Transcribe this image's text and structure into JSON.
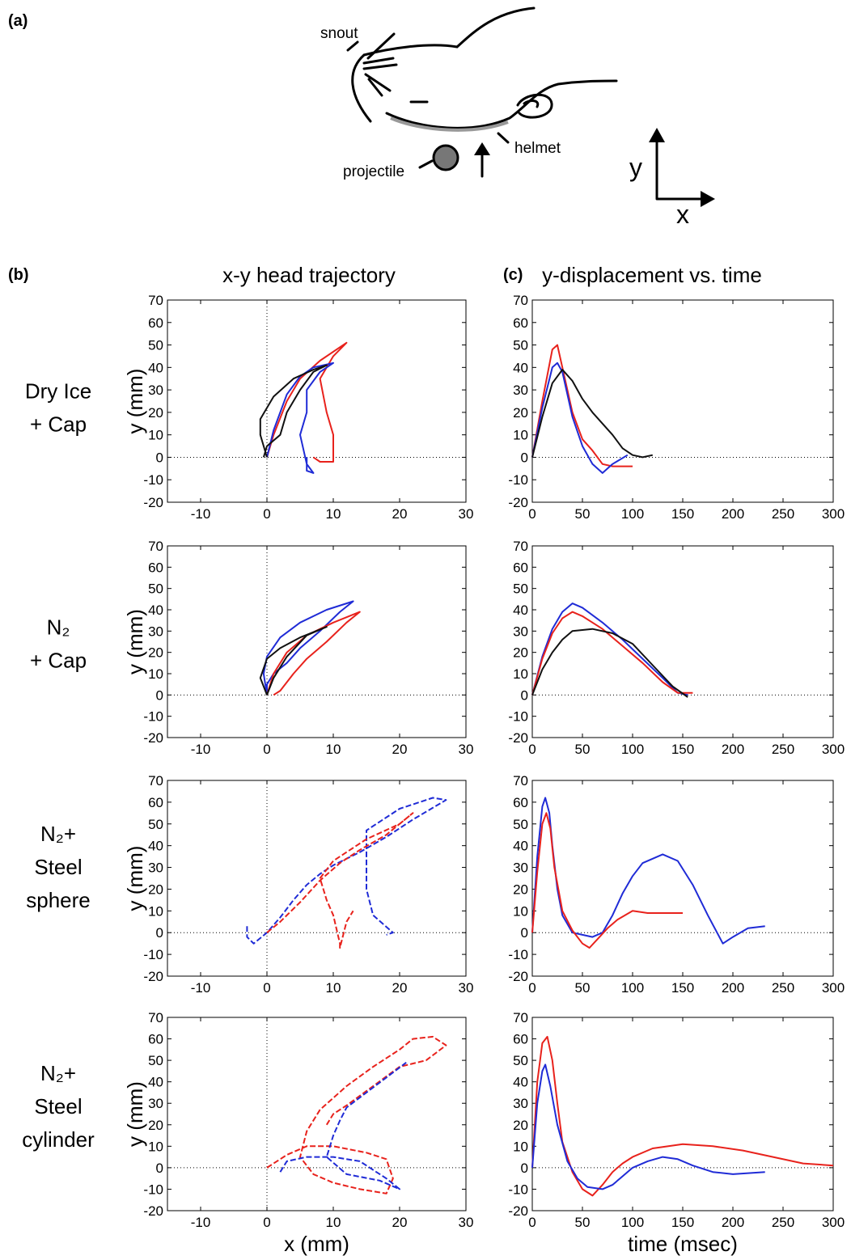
{
  "panel_labels": [
    "(a)",
    "(b)",
    "(c)"
  ],
  "diagram": {
    "labels": {
      "snout": "snout",
      "helmet": "helmet",
      "projectile": "projectile"
    },
    "axis_y": "y",
    "axis_x": "x"
  },
  "column_titles": [
    "x-y head trajectory",
    "y-displacement vs. time"
  ],
  "row_labels": [
    [
      "Dry Ice",
      "+ Cap"
    ],
    [
      "N₂",
      "+ Cap"
    ],
    [
      "N₂+",
      "Steel",
      "sphere"
    ],
    [
      "N₂+",
      "Steel",
      "cylinder"
    ]
  ],
  "chart_data": [
    {
      "type": "line",
      "ylabel": "y (mm)",
      "xlim": [
        -15,
        30
      ],
      "xticks": [
        -10,
        0,
        10,
        20,
        30
      ],
      "ylim": [
        -20,
        70
      ],
      "yticks": [
        -20,
        -10,
        0,
        10,
        20,
        30,
        40,
        50,
        60,
        70
      ],
      "zero_lines": true,
      "series": [
        {
          "color": "#e8221c",
          "x": [
            0,
            1,
            3,
            5,
            8,
            12,
            10,
            8,
            9,
            10,
            10,
            8,
            7
          ],
          "values": [
            0,
            10,
            25,
            35,
            43,
            51,
            45,
            35,
            20,
            10,
            -2,
            -2,
            0
          ]
        },
        {
          "color": "#1f2bd6",
          "x": [
            0,
            1,
            3,
            5,
            7,
            10,
            8,
            6,
            6,
            5,
            6,
            7,
            6,
            6
          ],
          "values": [
            0,
            12,
            28,
            36,
            40,
            42,
            38,
            30,
            20,
            10,
            -3,
            -7,
            -6,
            0
          ]
        },
        {
          "color": "#111111",
          "x": [
            0,
            -1,
            -1,
            1,
            4,
            7,
            9,
            7,
            5,
            3,
            2,
            0,
            -0.5
          ],
          "values": [
            0,
            10,
            17,
            27,
            35,
            39,
            41,
            38,
            30,
            20,
            10,
            5,
            0
          ]
        }
      ]
    },
    {
      "type": "line",
      "xlim": [
        0,
        300
      ],
      "xticks": [
        0,
        50,
        100,
        150,
        200,
        250,
        300
      ],
      "ylim": [
        -20,
        70
      ],
      "yticks": [
        -20,
        -10,
        0,
        10,
        20,
        30,
        40,
        50,
        60,
        70
      ],
      "zero_lines": true,
      "series": [
        {
          "color": "#e8221c",
          "x": [
            0,
            10,
            20,
            25,
            30,
            40,
            50,
            60,
            70,
            80,
            100
          ],
          "values": [
            0,
            25,
            48,
            50,
            40,
            20,
            8,
            3,
            -3,
            -4,
            -4
          ]
        },
        {
          "color": "#1f2bd6",
          "x": [
            0,
            10,
            20,
            25,
            30,
            40,
            50,
            60,
            70,
            80,
            95
          ],
          "values": [
            0,
            22,
            40,
            42,
            38,
            18,
            5,
            -3,
            -7,
            -3,
            1
          ]
        },
        {
          "color": "#111111",
          "x": [
            0,
            10,
            20,
            30,
            40,
            50,
            60,
            70,
            80,
            90,
            100,
            110,
            120
          ],
          "values": [
            0,
            18,
            33,
            39,
            34,
            26,
            20,
            15,
            10,
            4,
            1,
            0,
            1
          ]
        }
      ]
    },
    {
      "type": "line",
      "ylabel": "y (mm)",
      "xlim": [
        -15,
        30
      ],
      "xticks": [
        -10,
        0,
        10,
        20,
        30
      ],
      "ylim": [
        -20,
        70
      ],
      "yticks": [
        -20,
        -10,
        0,
        10,
        20,
        30,
        40,
        50,
        60,
        70
      ],
      "zero_lines": true,
      "series": [
        {
          "color": "#1f2bd6",
          "x": [
            0,
            -0.5,
            0,
            2,
            5,
            9,
            13,
            11,
            8,
            5,
            3,
            1,
            0,
            0
          ],
          "values": [
            0,
            10,
            18,
            27,
            34,
            40,
            44,
            39,
            30,
            22,
            15,
            10,
            5,
            0
          ]
        },
        {
          "color": "#e8221c",
          "x": [
            0,
            1,
            3,
            6,
            10,
            14,
            12,
            9,
            6,
            4,
            2,
            1
          ],
          "values": [
            0,
            10,
            20,
            28,
            34,
            39,
            34,
            25,
            17,
            10,
            2,
            0
          ]
        },
        {
          "color": "#111111",
          "x": [
            0,
            -1,
            0,
            2,
            5,
            9,
            6,
            3,
            1,
            0
          ],
          "values": [
            0,
            8,
            17,
            22,
            27,
            32,
            28,
            18,
            8,
            0
          ]
        }
      ]
    },
    {
      "type": "line",
      "xlim": [
        0,
        300
      ],
      "xticks": [
        0,
        50,
        100,
        150,
        200,
        250,
        300
      ],
      "ylim": [
        -20,
        70
      ],
      "yticks": [
        -20,
        -10,
        0,
        10,
        20,
        30,
        40,
        50,
        60,
        70
      ],
      "zero_lines": true,
      "series": [
        {
          "color": "#1f2bd6",
          "x": [
            0,
            10,
            20,
            30,
            40,
            50,
            70,
            90,
            110,
            130,
            145,
            155
          ],
          "values": [
            0,
            18,
            31,
            39,
            43,
            41,
            34,
            26,
            17,
            8,
            1,
            0
          ]
        },
        {
          "color": "#e8221c",
          "x": [
            0,
            10,
            20,
            30,
            40,
            50,
            70,
            90,
            110,
            130,
            145,
            160
          ],
          "values": [
            0,
            17,
            29,
            36,
            39,
            37,
            31,
            23,
            15,
            6,
            1,
            1
          ]
        },
        {
          "color": "#111111",
          "x": [
            0,
            10,
            20,
            30,
            40,
            60,
            80,
            100,
            120,
            140,
            155
          ],
          "values": [
            0,
            12,
            20,
            26,
            30,
            31,
            29,
            24,
            14,
            4,
            -1
          ]
        }
      ]
    },
    {
      "type": "line",
      "ylabel": "y (mm)",
      "xlim": [
        -15,
        30
      ],
      "xticks": [
        -10,
        0,
        10,
        20,
        30
      ],
      "ylim": [
        -20,
        70
      ],
      "yticks": [
        -20,
        -10,
        0,
        10,
        20,
        30,
        40,
        50,
        60,
        70
      ],
      "zero_lines": true,
      "dashed": true,
      "series": [
        {
          "color": "#1f2bd6",
          "x": [
            -3,
            -3,
            -2,
            0,
            2,
            4,
            6,
            8,
            10,
            14,
            18,
            22,
            27,
            25,
            20,
            15,
            15,
            15,
            16,
            19,
            18
          ],
          "values": [
            3,
            -2,
            -5,
            0,
            7,
            15,
            22,
            27,
            31,
            37,
            44,
            52,
            61,
            62,
            57,
            47,
            36,
            20,
            8,
            0,
            -1
          ]
        },
        {
          "color": "#e8221c",
          "x": [
            0,
            2,
            5,
            8,
            11,
            14,
            18,
            22,
            20,
            15,
            10,
            8,
            9,
            10,
            11,
            11,
            12,
            13
          ],
          "values": [
            0,
            5,
            14,
            24,
            32,
            38,
            45,
            55,
            50,
            43,
            33,
            25,
            15,
            8,
            -5,
            -7,
            5,
            10
          ]
        }
      ]
    },
    {
      "type": "line",
      "xlim": [
        0,
        300
      ],
      "xticks": [
        0,
        50,
        100,
        150,
        200,
        250,
        300
      ],
      "ylim": [
        -20,
        70
      ],
      "yticks": [
        -20,
        -10,
        0,
        10,
        20,
        30,
        40,
        50,
        60,
        70
      ],
      "zero_lines": true,
      "series": [
        {
          "color": "#1f2bd6",
          "x": [
            0,
            5,
            10,
            13,
            17,
            20,
            25,
            30,
            40,
            50,
            60,
            70,
            80,
            90,
            100,
            110,
            130,
            145,
            160,
            175,
            190,
            200,
            215,
            232
          ],
          "values": [
            0,
            35,
            58,
            62,
            55,
            40,
            20,
            8,
            0,
            -1,
            -2,
            0,
            8,
            18,
            26,
            32,
            36,
            33,
            22,
            8,
            -5,
            -2,
            2,
            3
          ]
        },
        {
          "color": "#e8221c",
          "x": [
            0,
            5,
            10,
            14,
            18,
            22,
            30,
            40,
            50,
            57,
            65,
            75,
            85,
            100,
            115,
            130,
            150
          ],
          "values": [
            0,
            28,
            50,
            55,
            48,
            30,
            10,
            1,
            -5,
            -7,
            -3,
            2,
            6,
            10,
            9,
            9,
            9
          ]
        }
      ]
    },
    {
      "type": "line",
      "ylabel": "y (mm)",
      "xlabel": "x (mm)",
      "xlim": [
        -15,
        30
      ],
      "xticks": [
        -10,
        0,
        10,
        20,
        30
      ],
      "ylim": [
        -20,
        70
      ],
      "yticks": [
        -20,
        -10,
        0,
        10,
        20,
        30,
        40,
        50,
        60,
        70
      ],
      "zero_lines": true,
      "dashed": true,
      "series": [
        {
          "color": "#e8221c",
          "x": [
            0,
            3,
            6,
            10,
            15,
            18,
            19,
            18,
            14,
            10,
            7,
            5,
            6,
            8,
            12,
            16,
            20,
            22,
            25,
            27,
            24,
            20,
            16,
            12,
            10,
            9
          ],
          "values": [
            0,
            6,
            10,
            10,
            7,
            4,
            -5,
            -12,
            -10,
            -7,
            -3,
            5,
            17,
            27,
            38,
            47,
            55,
            60,
            61,
            57,
            50,
            47,
            38,
            29,
            25,
            20
          ]
        },
        {
          "color": "#1f2bd6",
          "x": [
            2,
            3,
            6,
            10,
            14,
            18,
            20,
            17,
            12,
            9,
            10,
            11,
            12,
            15,
            18,
            21
          ],
          "values": [
            -2,
            3,
            5,
            5,
            3,
            -5,
            -10,
            -6,
            -3,
            5,
            15,
            22,
            28,
            35,
            42,
            49
          ]
        }
      ]
    },
    {
      "type": "line",
      "xlabel": "time (msec)",
      "xlim": [
        0,
        300
      ],
      "xticks": [
        0,
        50,
        100,
        150,
        200,
        250,
        300
      ],
      "ylim": [
        -20,
        70
      ],
      "yticks": [
        -20,
        -10,
        0,
        10,
        20,
        30,
        40,
        50,
        60,
        70
      ],
      "zero_lines": true,
      "series": [
        {
          "color": "#e8221c",
          "x": [
            0,
            5,
            10,
            15,
            20,
            25,
            30,
            40,
            50,
            60,
            70,
            80,
            90,
            100,
            120,
            150,
            180,
            210,
            240,
            270,
            300
          ],
          "values": [
            0,
            40,
            58,
            61,
            50,
            30,
            12,
            -2,
            -10,
            -13,
            -8,
            -2,
            2,
            5,
            9,
            11,
            10,
            8,
            5,
            2,
            1
          ]
        },
        {
          "color": "#1f2bd6",
          "x": [
            0,
            5,
            10,
            13,
            18,
            25,
            35,
            45,
            55,
            70,
            80,
            90,
            100,
            115,
            130,
            145,
            160,
            180,
            200,
            232
          ],
          "values": [
            0,
            30,
            45,
            48,
            38,
            20,
            3,
            -5,
            -9,
            -10,
            -8,
            -4,
            0,
            3,
            5,
            4,
            1,
            -2,
            -3,
            -2
          ]
        }
      ]
    }
  ]
}
